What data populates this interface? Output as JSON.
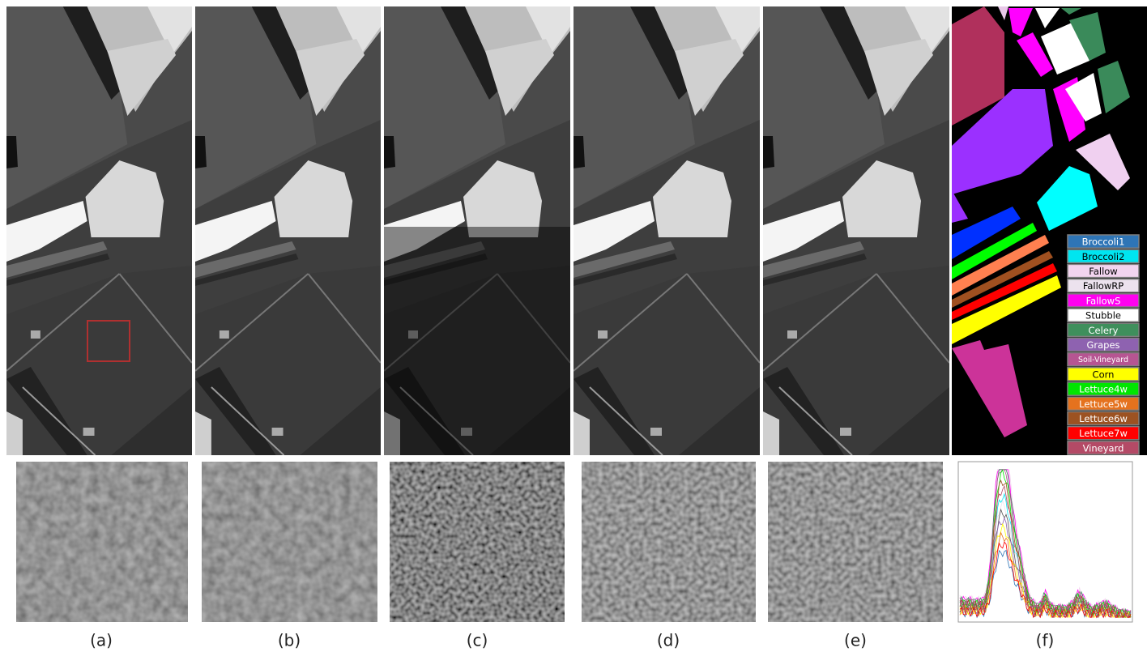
{
  "figure": {
    "captions": [
      "(a)",
      "(b)",
      "(c)",
      "(d)",
      "(e)",
      "(f)"
    ]
  },
  "legend": {
    "items": [
      {
        "label": "Broccoli1",
        "color": "#2e75b6"
      },
      {
        "label": "Broccoli2",
        "color": "#00e5f0"
      },
      {
        "label": "Fallow",
        "color": "#f2d4ef"
      },
      {
        "label": "FallowRP",
        "color": "#ece2ee"
      },
      {
        "label": "FallowS",
        "color": "#ff00f0"
      },
      {
        "label": "Stubble",
        "color": "#ffffff"
      },
      {
        "label": "Celery",
        "color": "#3f8f5c"
      },
      {
        "label": "Grapes",
        "color": "#8e62b0"
      },
      {
        "label": "Soil-Vineyard",
        "color": "#b65592"
      },
      {
        "label": "Corn",
        "color": "#ffff00"
      },
      {
        "label": "Lettuce4w",
        "color": "#00e600"
      },
      {
        "label": "Lettuce5w",
        "color": "#e5721e"
      },
      {
        "label": "Lettuce6w",
        "color": "#9c5222"
      },
      {
        "label": "Lettuce7w",
        "color": "#ff0000"
      },
      {
        "label": "Vineyard",
        "color": "#b44a66"
      }
    ]
  }
}
